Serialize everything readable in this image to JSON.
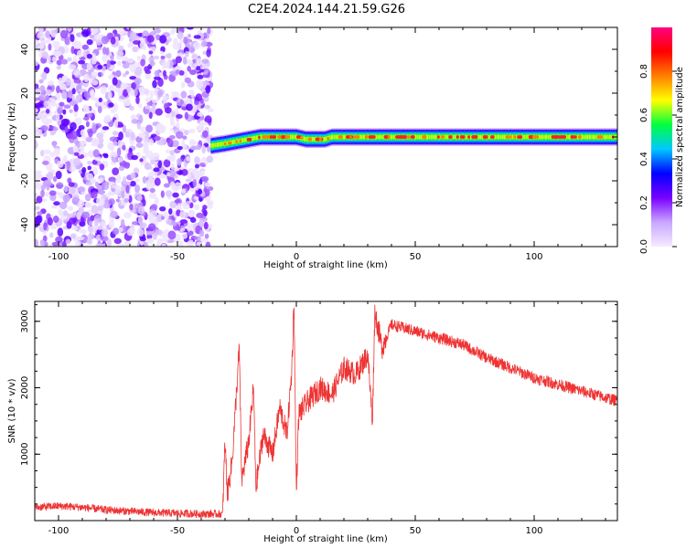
{
  "figure": {
    "title": "C2E4.2024.144.21.59.G26"
  },
  "colors": {
    "snr_line": "#ee3333",
    "axes": "#000000",
    "background": "#ffffff"
  },
  "chart_data": [
    {
      "type": "heatmap",
      "name": "spectrogram",
      "xlabel": "Height of straight line (km)",
      "ylabel": "Frequency (Hz)",
      "xlim": [
        -110,
        135
      ],
      "ylim": [
        -50,
        50
      ],
      "xticks": [
        -100,
        -50,
        0,
        50,
        100
      ],
      "xtick_labels": [
        "-100",
        "-50",
        "0",
        "50",
        "100"
      ],
      "yticks": [
        -40,
        -20,
        0,
        20,
        40
      ],
      "ytick_labels": [
        "-40",
        "-20",
        "0",
        "20",
        "40"
      ],
      "noise_region_x": [
        -110,
        -36
      ],
      "signal_band_x": [
        -36,
        135
      ],
      "signal_band_halfwidth_hz": 4,
      "signal_center_trace": [
        {
          "x": -36,
          "y": -4
        },
        {
          "x": -30,
          "y": -3
        },
        {
          "x": -25,
          "y": -2
        },
        {
          "x": -20,
          "y": -1
        },
        {
          "x": -15,
          "y": 0
        },
        {
          "x": -8,
          "y": 0
        },
        {
          "x": 0,
          "y": 0
        },
        {
          "x": 4,
          "y": -1
        },
        {
          "x": 12,
          "y": -1
        },
        {
          "x": 15,
          "y": 0
        },
        {
          "x": 135,
          "y": 0
        }
      ],
      "colorbar": {
        "label": "Normalized spectral amplitude",
        "range": [
          0,
          1
        ],
        "ticks": [
          0.0,
          0.2,
          0.4,
          0.6,
          0.8
        ],
        "tick_labels": [
          "0.0",
          "0.2",
          "0.4",
          "0.6",
          "0.8"
        ],
        "colormap": [
          "#f4ecff",
          "#c9a6ff",
          "#7a00ff",
          "#0000ff",
          "#00c8ff",
          "#00ff40",
          "#ffff00",
          "#ff8000",
          "#ff0000",
          "#ff0080"
        ]
      }
    },
    {
      "type": "line",
      "name": "snr",
      "xlabel": "Height of straight line (km)",
      "ylabel": "SNR (10 * v/v)",
      "xlim": [
        -110,
        135
      ],
      "ylim": [
        0,
        3300
      ],
      "xticks": [
        -100,
        -50,
        0,
        50,
        100
      ],
      "xtick_labels": [
        "-100",
        "-50",
        "0",
        "50",
        "100"
      ],
      "yticks": [
        1000,
        2000,
        3000
      ],
      "ytick_labels": [
        "1000",
        "2000",
        "3000"
      ],
      "series": [
        {
          "name": "SNR",
          "color": "#ee3333",
          "noise_amplitude": 60,
          "points": [
            {
              "x": -110,
              "y": 200
            },
            {
              "x": -100,
              "y": 220
            },
            {
              "x": -90,
              "y": 200
            },
            {
              "x": -80,
              "y": 160
            },
            {
              "x": -70,
              "y": 140
            },
            {
              "x": -60,
              "y": 120
            },
            {
              "x": -50,
              "y": 110
            },
            {
              "x": -40,
              "y": 100
            },
            {
              "x": -31,
              "y": 100
            },
            {
              "x": -30,
              "y": 1200
            },
            {
              "x": -29,
              "y": 400
            },
            {
              "x": -27,
              "y": 900
            },
            {
              "x": -24,
              "y": 2600
            },
            {
              "x": -23,
              "y": 600
            },
            {
              "x": -20,
              "y": 1200
            },
            {
              "x": -18,
              "y": 2000
            },
            {
              "x": -17,
              "y": 500
            },
            {
              "x": -14,
              "y": 1300
            },
            {
              "x": -10,
              "y": 1000
            },
            {
              "x": -7,
              "y": 1700
            },
            {
              "x": -4,
              "y": 1300
            },
            {
              "x": -2,
              "y": 2200
            },
            {
              "x": -1,
              "y": 3300
            },
            {
              "x": 0,
              "y": 400
            },
            {
              "x": 1,
              "y": 1600
            },
            {
              "x": 5,
              "y": 1800
            },
            {
              "x": 10,
              "y": 2000
            },
            {
              "x": 15,
              "y": 1900
            },
            {
              "x": 20,
              "y": 2300
            },
            {
              "x": 25,
              "y": 2200
            },
            {
              "x": 30,
              "y": 2500
            },
            {
              "x": 32,
              "y": 1500
            },
            {
              "x": 33,
              "y": 3150
            },
            {
              "x": 36,
              "y": 2600
            },
            {
              "x": 40,
              "y": 2950
            },
            {
              "x": 45,
              "y": 2900
            },
            {
              "x": 50,
              "y": 2850
            },
            {
              "x": 60,
              "y": 2750
            },
            {
              "x": 70,
              "y": 2650
            },
            {
              "x": 80,
              "y": 2450
            },
            {
              "x": 90,
              "y": 2300
            },
            {
              "x": 100,
              "y": 2150
            },
            {
              "x": 110,
              "y": 2050
            },
            {
              "x": 120,
              "y": 1950
            },
            {
              "x": 130,
              "y": 1850
            },
            {
              "x": 135,
              "y": 1800
            }
          ]
        }
      ]
    }
  ]
}
